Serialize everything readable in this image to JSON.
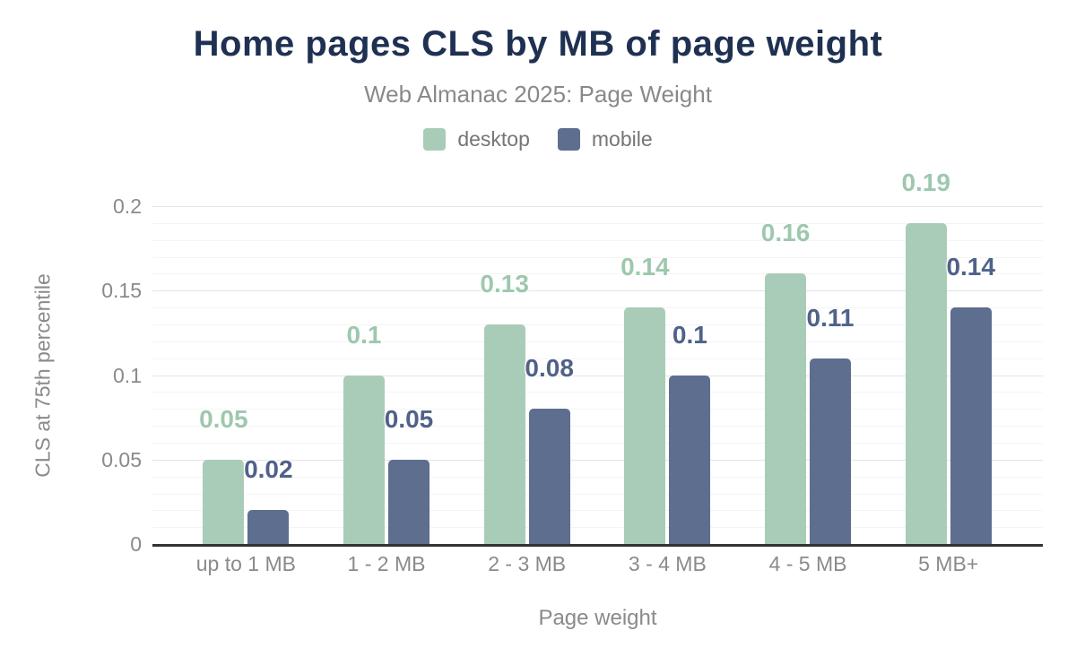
{
  "title": "Home pages CLS by MB of page weight",
  "subtitle": "Web Almanac 2025: Page Weight",
  "legend": {
    "items": [
      {
        "label": "desktop",
        "color": "#a9ccb8"
      },
      {
        "label": "mobile",
        "color": "#5d6e8f"
      }
    ]
  },
  "chart_data": {
    "type": "bar",
    "title": "Home pages CLS by MB of page weight",
    "subtitle": "Web Almanac 2025: Page Weight",
    "categories": [
      "up to 1 MB",
      "1 - 2 MB",
      "2 - 3 MB",
      "3 - 4 MB",
      "4 - 5 MB",
      "5 MB+"
    ],
    "series": [
      {
        "name": "desktop",
        "color": "#a9ccb8",
        "label_color": "#9ec8ae",
        "values": [
          0.05,
          0.1,
          0.13,
          0.14,
          0.16,
          0.19
        ],
        "labels": [
          "0.05",
          "0.1",
          "0.13",
          "0.14",
          "0.16",
          "0.19"
        ]
      },
      {
        "name": "mobile",
        "color": "#5d6e8f",
        "label_color": "#50628a",
        "values": [
          0.02,
          0.05,
          0.08,
          0.1,
          0.11,
          0.14
        ],
        "labels": [
          "0.02",
          "0.05",
          "0.08",
          "0.1",
          "0.11",
          "0.14"
        ]
      }
    ],
    "xlabel": "Page weight",
    "ylabel": "CLS at 75th percentile",
    "ylim": [
      0,
      0.2
    ],
    "y_ticks": [
      {
        "label": "0.2",
        "value": 0.2
      },
      {
        "label": "0.15",
        "value": 0.15
      },
      {
        "label": "0.1",
        "value": 0.1
      },
      {
        "label": "0.05",
        "value": 0.05
      },
      {
        "label": "0",
        "value": 0
      }
    ],
    "grid": {
      "major_interval": 0.05,
      "minor_interval": 0.01,
      "shown": true
    },
    "legend_position": "top",
    "data_labels_shown": true
  }
}
